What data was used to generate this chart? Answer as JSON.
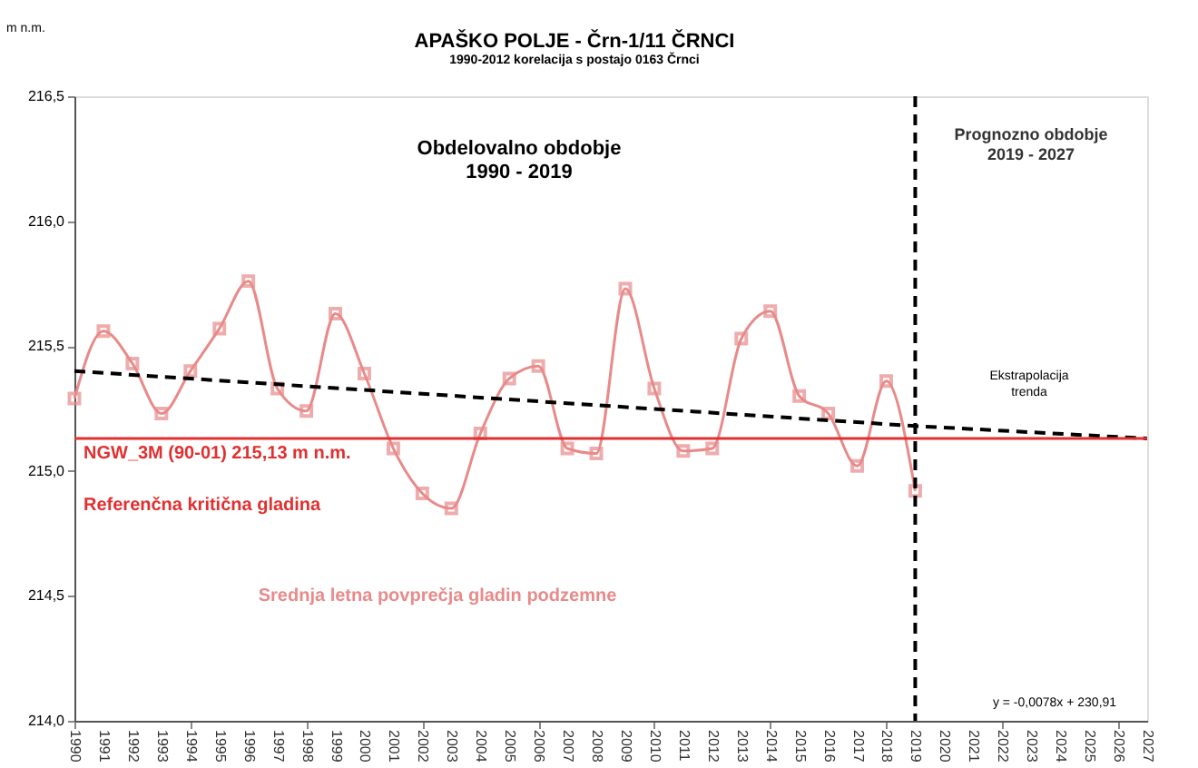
{
  "chart_data": {
    "type": "line",
    "title": "APAŠKO POLJE - Črn-1/11 ČRNCI",
    "subtitle": "1990-2012 korelacija s postajo 0163 Črnci",
    "ylabel": "m n.m.",
    "x": [
      1990,
      1991,
      1992,
      1993,
      1994,
      1995,
      1996,
      1997,
      1998,
      1999,
      2000,
      2001,
      2002,
      2003,
      2004,
      2005,
      2006,
      2007,
      2008,
      2009,
      2010,
      2011,
      2012,
      2013,
      2014,
      2015,
      2016,
      2017,
      2018,
      2019
    ],
    "series": [
      {
        "name": "Srednja letna povprečja gladin podzemne",
        "color": "#e88a8a",
        "marker": "square",
        "line_style": "solid",
        "values": [
          215.29,
          215.56,
          215.43,
          215.23,
          215.4,
          215.57,
          215.76,
          215.33,
          215.24,
          215.63,
          215.39,
          215.09,
          214.91,
          214.85,
          215.15,
          215.37,
          215.42,
          215.09,
          215.07,
          215.73,
          215.33,
          215.08,
          215.09,
          215.53,
          215.64,
          215.3,
          215.23,
          215.02,
          215.36,
          214.92
        ]
      },
      {
        "type": "line",
        "color": "#000000",
        "marker": "none",
        "line_style": "dashed",
        "x": [
          1990,
          2019,
          2027
        ],
        "values": [
          215.4,
          215.18,
          215.13
        ]
      }
    ],
    "ref_lines": [
      {
        "axis": "y",
        "value": 215.13,
        "label": "NGW_3M (90-01) 215,13 m n.m.",
        "color": "#e03030",
        "line_style": "solid"
      },
      {
        "axis": "x",
        "value": 2019,
        "color": "#000000",
        "line_style": "dashed"
      }
    ],
    "annotations": [
      "Referenčna kritična gladina",
      "Obdelovalno obdobje\n1990 - 2019",
      "Prognozno obdobje\n2019 - 2027",
      "Ekstrapolacija\ntrenda",
      "y = -0,0078x + 230,91"
    ],
    "xlim": [
      1990,
      2027
    ],
    "xticks": [
      1990,
      1991,
      1992,
      1993,
      1994,
      1995,
      1996,
      1997,
      1998,
      1999,
      2000,
      2001,
      2002,
      2003,
      2004,
      2005,
      2006,
      2007,
      2008,
      2009,
      2010,
      2011,
      2012,
      2013,
      2014,
      2015,
      2016,
      2017,
      2018,
      2019,
      2020,
      2021,
      2022,
      2023,
      2024,
      2025,
      2026,
      2027
    ],
    "ylim": [
      214.0,
      216.5
    ],
    "yticks": [
      {
        "value": 214.0,
        "label": "214,0"
      },
      {
        "value": 214.5,
        "label": "214,5"
      },
      {
        "value": 215.0,
        "label": "215,0"
      },
      {
        "value": 215.5,
        "label": "215,5"
      },
      {
        "value": 216.0,
        "label": "216,0"
      },
      {
        "value": 216.5,
        "label": "216,5"
      }
    ],
    "grid": false
  }
}
